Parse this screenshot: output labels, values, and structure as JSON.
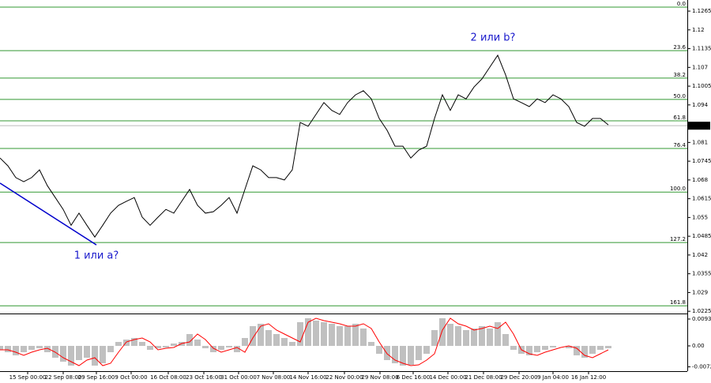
{
  "chart_data": [
    {
      "type": "line",
      "xlim": [
        0,
        87
      ],
      "ylim": [
        1.022,
        1.1298
      ],
      "yticks": [
        1.1265,
        1.12,
        1.1135,
        1.107,
        1.1005,
        1.094,
        1.081,
        1.0745,
        1.068,
        1.0615,
        1.055,
        1.0485,
        1.042,
        1.0355,
        1.029,
        1.0225
      ],
      "xticks": [
        {
          "value": 3.5,
          "label": "15 Sep 00:00"
        },
        {
          "value": 8,
          "label": "22 Sep 08:00"
        },
        {
          "value": 12.2,
          "label": "29 Sep 16:00"
        },
        {
          "value": 16.6,
          "label": "9 Oct 00:00"
        },
        {
          "value": 21.3,
          "label": "16 Oct 08:00"
        },
        {
          "value": 25.8,
          "label": "23 Oct 16:00"
        },
        {
          "value": 30.2,
          "label": "31 Oct 00:00"
        },
        {
          "value": 34.6,
          "label": "7 Nov 08:00"
        },
        {
          "value": 39,
          "label": "14 Nov 16:00"
        },
        {
          "value": 43.6,
          "label": "22 Nov 00:00"
        },
        {
          "value": 48.1,
          "label": "29 Nov 08:00"
        },
        {
          "value": 52.3,
          "label": "6 Dec 16:00"
        },
        {
          "value": 56.7,
          "label": "14 Dec 00:00"
        },
        {
          "value": 61.2,
          "label": "21 Dec 08:00"
        },
        {
          "value": 65.7,
          "label": "29 Dec 20:00"
        },
        {
          "value": 70,
          "label": "9 Jan 04:00"
        },
        {
          "value": 74.5,
          "label": "16 Jan 12:00"
        }
      ],
      "last_price": 1.0868,
      "fib_color": "#339933",
      "fib_levels": [
        {
          "label": "0.0",
          "price": 1.1279
        },
        {
          "label": "23.6",
          "price": 1.1128
        },
        {
          "label": "38.2",
          "price": 1.1033
        },
        {
          "label": "50.0",
          "price": 1.0959
        },
        {
          "label": "61.8",
          "price": 1.0885
        },
        {
          "label": "76.4",
          "price": 1.0789
        },
        {
          "label": "100.0",
          "price": 1.0638
        },
        {
          "label": "127.2",
          "price": 1.0463
        },
        {
          "label": "161.8",
          "price": 1.0244
        }
      ],
      "trendline": {
        "color": "#0000cc",
        "x": [
          0,
          12.2
        ],
        "values": [
          1.0669,
          1.0455
        ]
      },
      "annotations": [
        "1 или a?",
        "2 или b?"
      ],
      "series": [
        {
          "color": "#000000",
          "x": [
            0,
            1,
            2,
            3,
            4,
            5,
            6,
            7,
            8,
            9,
            10,
            11,
            12,
            13,
            14,
            15,
            16,
            17,
            18,
            19,
            20,
            21,
            22,
            23,
            24,
            25,
            26,
            27,
            28,
            29,
            30,
            31,
            32,
            33,
            34,
            35,
            36,
            37,
            38,
            39,
            40,
            41,
            42,
            43,
            44,
            45,
            46,
            47,
            48,
            49,
            50,
            51,
            52,
            53,
            54,
            55,
            56,
            57,
            58,
            59,
            60,
            61,
            62,
            63,
            64,
            65,
            66,
            67,
            68,
            69,
            70,
            71,
            72,
            73,
            74,
            75,
            76,
            77
          ],
          "values": [
            1.0756,
            1.0729,
            1.0688,
            1.0674,
            1.0688,
            1.0715,
            1.066,
            1.0619,
            1.0578,
            1.0523,
            1.0565,
            1.0523,
            1.0482,
            1.0523,
            1.0565,
            1.0592,
            1.0606,
            1.0619,
            1.0551,
            1.0523,
            1.0551,
            1.0578,
            1.0565,
            1.0606,
            1.0647,
            1.0592,
            1.0565,
            1.057,
            1.0592,
            1.0619,
            1.0565,
            1.0647,
            1.0729,
            1.0715,
            1.0688,
            1.0688,
            1.068,
            1.0715,
            1.0879,
            1.0866,
            1.0907,
            1.0948,
            1.0921,
            1.0907,
            1.0948,
            1.0975,
            1.0989,
            1.0961,
            1.0893,
            1.0852,
            1.0797,
            1.0797,
            1.0756,
            1.0783,
            1.0797,
            1.0893,
            1.0975,
            1.0921,
            1.0975,
            1.0961,
            1.1002,
            1.103,
            1.1071,
            1.1112,
            1.1044,
            1.0961,
            1.0948,
            1.0934,
            1.0961,
            1.0948,
            1.0975,
            1.0961,
            1.0934,
            1.0879,
            1.0866,
            1.0893,
            1.0893,
            1.0871
          ]
        }
      ]
    },
    {
      "type": "bar",
      "xlim": [
        0,
        87
      ],
      "ylim": [
        -0.00877,
        0.01096
      ],
      "yticks": [
        0.00932,
        {
          "value": 0,
          "label": "0.00"
        },
        -0.00728
      ],
      "x": [
        0,
        1,
        2,
        3,
        4,
        5,
        6,
        7,
        8,
        9,
        10,
        11,
        12,
        13,
        14,
        15,
        16,
        17,
        18,
        19,
        20,
        21,
        22,
        23,
        24,
        25,
        26,
        27,
        28,
        29,
        30,
        31,
        32,
        33,
        34,
        35,
        36,
        37,
        38,
        39,
        40,
        41,
        42,
        43,
        44,
        45,
        46,
        47,
        48,
        49,
        50,
        51,
        52,
        53,
        54,
        55,
        56,
        57,
        58,
        59,
        60,
        61,
        62,
        63,
        64,
        65,
        66,
        67,
        68,
        69,
        70,
        71,
        72,
        73,
        74,
        75,
        76,
        77
      ],
      "series": [
        {
          "type": "bar",
          "color": "#c0c0c0",
          "values": [
            -0.00137,
            -0.00219,
            -0.00329,
            -0.00219,
            -0.00137,
            -0.00082,
            -0.00219,
            -0.00411,
            -0.00548,
            -0.00685,
            -0.00493,
            -0.00411,
            -0.00685,
            -0.00603,
            -0.00219,
            0.00137,
            0.00219,
            0.00274,
            0.00137,
            -0.00137,
            -0.00082,
            -0.00055,
            0.00082,
            0.00137,
            0.00411,
            0.00219,
            -0.00082,
            -0.00219,
            -0.00137,
            -0.00055,
            -0.00219,
            0.00274,
            0.00685,
            0.00767,
            0.00548,
            0.00411,
            0.00274,
            0.00137,
            0.00822,
            0.00959,
            0.00877,
            0.00822,
            0.00767,
            0.00685,
            0.00685,
            0.00767,
            0.00603,
            0.00137,
            -0.00274,
            -0.00493,
            -0.00603,
            -0.00685,
            -0.00658,
            -0.00493,
            -0.00274,
            0.00548,
            0.00959,
            0.00767,
            0.00685,
            0.00548,
            0.00603,
            0.00685,
            0.00603,
            0.00822,
            0.00411,
            -0.00137,
            -0.00274,
            -0.00329,
            -0.00219,
            -0.00137,
            -0.00055,
            0,
            -0.00082,
            -0.00329,
            -0.00411,
            -0.00274,
            -0.00137,
            -0.00082
          ]
        },
        {
          "type": "line",
          "color": "#ff0000",
          "values": [
            -0.00137,
            -0.00137,
            -0.00219,
            -0.00329,
            -0.00219,
            -0.00137,
            -0.00082,
            -0.00219,
            -0.00411,
            -0.00548,
            -0.00685,
            -0.00493,
            -0.00411,
            -0.00685,
            -0.00603,
            -0.00219,
            0.00137,
            0.00219,
            0.00274,
            0.00137,
            -0.00137,
            -0.00082,
            -0.00055,
            0.00082,
            0.00137,
            0.00411,
            0.00219,
            -0.00082,
            -0.00219,
            -0.00137,
            -0.00055,
            -0.00219,
            0.00274,
            0.00685,
            0.00767,
            0.00548,
            0.00411,
            0.00274,
            0.00137,
            0.00822,
            0.00959,
            0.00877,
            0.00822,
            0.00767,
            0.00685,
            0.00685,
            0.00767,
            0.00603,
            0.00137,
            -0.00274,
            -0.00493,
            -0.00603,
            -0.00685,
            -0.00658,
            -0.00493,
            -0.00274,
            0.00548,
            0.00959,
            0.00767,
            0.00685,
            0.00548,
            0.00603,
            0.00685,
            0.00603,
            0.00822,
            0.00411,
            -0.00137,
            -0.00274,
            -0.00329,
            -0.00219,
            -0.00137,
            -0.00055,
            0,
            -0.00082,
            -0.00329,
            -0.00411,
            -0.00274,
            -0.00137
          ]
        }
      ]
    }
  ]
}
